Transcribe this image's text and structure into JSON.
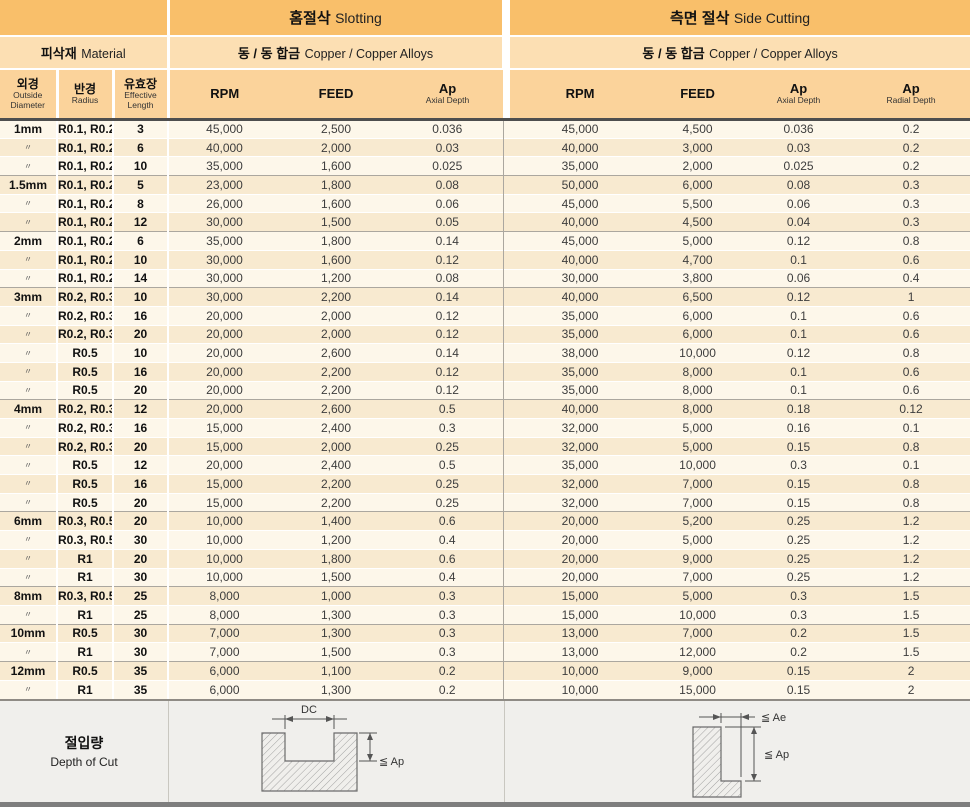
{
  "sections": {
    "slotting": {
      "ko": "홈절삭",
      "en": "Slotting"
    },
    "side_cutting": {
      "ko": "측면 절삭",
      "en": "Side Cutting"
    }
  },
  "material": {
    "label_ko": "피삭재",
    "label_en": "Material",
    "slotting_value_ko": "동 / 동 합금",
    "slotting_value_en": "Copper / Copper Alloys",
    "side_value_ko": "동 / 동 합금",
    "side_value_en": "Copper / Copper Alloys"
  },
  "columns": {
    "outside_diameter": {
      "ko": "외경",
      "en": "Outside Diameter"
    },
    "radius": {
      "ko": "반경",
      "en": "Radius"
    },
    "effective_length": {
      "ko": "유효장",
      "en": "Effective Length"
    },
    "slot_rpm": "RPM",
    "slot_feed": "FEED",
    "slot_ap": {
      "label": "Ap",
      "sub": "Axial Depth"
    },
    "side_rpm": "RPM",
    "side_feed": "FEED",
    "side_ap": {
      "label": "Ap",
      "sub": "Axial Depth"
    },
    "side_ae": {
      "label": "Ap",
      "sub": "Radial Depth"
    }
  },
  "rows": [
    [
      "1mm",
      "R0.1, R0.2",
      "3",
      "45,000",
      "2,500",
      "0.036",
      "45,000",
      "4,500",
      "0.036",
      "0.2"
    ],
    [
      "〃",
      "R0.1, R0.2",
      "6",
      "40,000",
      "2,000",
      "0.03",
      "40,000",
      "3,000",
      "0.03",
      "0.2"
    ],
    [
      "〃",
      "R0.1, R0.2",
      "10",
      "35,000",
      "1,600",
      "0.025",
      "35,000",
      "2,000",
      "0.025",
      "0.2"
    ],
    [
      "1.5mm",
      "R0.1, R0.2",
      "5",
      "23,000",
      "1,800",
      "0.08",
      "50,000",
      "6,000",
      "0.08",
      "0.3"
    ],
    [
      "〃",
      "R0.1, R0.2",
      "8",
      "26,000",
      "1,600",
      "0.06",
      "45,000",
      "5,500",
      "0.06",
      "0.3"
    ],
    [
      "〃",
      "R0.1, R0.2",
      "12",
      "30,000",
      "1,500",
      "0.05",
      "40,000",
      "4,500",
      "0.04",
      "0.3"
    ],
    [
      "2mm",
      "R0.1, R0.2",
      "6",
      "35,000",
      "1,800",
      "0.14",
      "45,000",
      "5,000",
      "0.12",
      "0.8"
    ],
    [
      "〃",
      "R0.1, R0.2",
      "10",
      "30,000",
      "1,600",
      "0.12",
      "40,000",
      "4,700",
      "0.1",
      "0.6"
    ],
    [
      "〃",
      "R0.1, R0.2",
      "14",
      "30,000",
      "1,200",
      "0.08",
      "30,000",
      "3,800",
      "0.06",
      "0.4"
    ],
    [
      "3mm",
      "R0.2, R0.3",
      "10",
      "30,000",
      "2,200",
      "0.14",
      "40,000",
      "6,500",
      "0.12",
      "1"
    ],
    [
      "〃",
      "R0.2, R0.3",
      "16",
      "20,000",
      "2,000",
      "0.12",
      "35,000",
      "6,000",
      "0.1",
      "0.6"
    ],
    [
      "〃",
      "R0.2, R0.3",
      "20",
      "20,000",
      "2,000",
      "0.12",
      "35,000",
      "6,000",
      "0.1",
      "0.6"
    ],
    [
      "〃",
      "R0.5",
      "10",
      "20,000",
      "2,600",
      "0.14",
      "38,000",
      "10,000",
      "0.12",
      "0.8"
    ],
    [
      "〃",
      "R0.5",
      "16",
      "20,000",
      "2,200",
      "0.12",
      "35,000",
      "8,000",
      "0.1",
      "0.6"
    ],
    [
      "〃",
      "R0.5",
      "20",
      "20,000",
      "2,200",
      "0.12",
      "35,000",
      "8,000",
      "0.1",
      "0.6"
    ],
    [
      "4mm",
      "R0.2, R0.3",
      "12",
      "20,000",
      "2,600",
      "0.5",
      "40,000",
      "8,000",
      "0.18",
      "0.12"
    ],
    [
      "〃",
      "R0.2, R0.3",
      "16",
      "15,000",
      "2,400",
      "0.3",
      "32,000",
      "5,000",
      "0.16",
      "0.1"
    ],
    [
      "〃",
      "R0.2, R0.3",
      "20",
      "15,000",
      "2,000",
      "0.25",
      "32,000",
      "5,000",
      "0.15",
      "0.8"
    ],
    [
      "〃",
      "R0.5",
      "12",
      "20,000",
      "2,400",
      "0.5",
      "35,000",
      "10,000",
      "0.3",
      "0.1"
    ],
    [
      "〃",
      "R0.5",
      "16",
      "15,000",
      "2,200",
      "0.25",
      "32,000",
      "7,000",
      "0.15",
      "0.8"
    ],
    [
      "〃",
      "R0.5",
      "20",
      "15,000",
      "2,200",
      "0.25",
      "32,000",
      "7,000",
      "0.15",
      "0.8"
    ],
    [
      "6mm",
      "R0.3, R0.5",
      "20",
      "10,000",
      "1,400",
      "0.6",
      "20,000",
      "5,200",
      "0.25",
      "1.2"
    ],
    [
      "〃",
      "R0.3, R0.5",
      "30",
      "10,000",
      "1,200",
      "0.4",
      "20,000",
      "5,000",
      "0.25",
      "1.2"
    ],
    [
      "〃",
      "R1",
      "20",
      "10,000",
      "1,800",
      "0.6",
      "20,000",
      "9,000",
      "0.25",
      "1.2"
    ],
    [
      "〃",
      "R1",
      "30",
      "10,000",
      "1,500",
      "0.4",
      "20,000",
      "7,000",
      "0.25",
      "1.2"
    ],
    [
      "8mm",
      "R0.3, R0.5",
      "25",
      "8,000",
      "1,000",
      "0.3",
      "15,000",
      "5,000",
      "0.3",
      "1.5"
    ],
    [
      "〃",
      "R1",
      "25",
      "8,000",
      "1,300",
      "0.3",
      "15,000",
      "10,000",
      "0.3",
      "1.5"
    ],
    [
      "10mm",
      "R0.5",
      "30",
      "7,000",
      "1,300",
      "0.3",
      "13,000",
      "7,000",
      "0.2",
      "1.5"
    ],
    [
      "〃",
      "R1",
      "30",
      "7,000",
      "1,500",
      "0.3",
      "13,000",
      "12,000",
      "0.2",
      "1.5"
    ],
    [
      "12mm",
      "R0.5",
      "35",
      "6,000",
      "1,100",
      "0.2",
      "10,000",
      "9,000",
      "0.15",
      "2"
    ],
    [
      "〃",
      "R1",
      "35",
      "6,000",
      "1,300",
      "0.2",
      "10,000",
      "15,000",
      "0.15",
      "2"
    ]
  ],
  "group_start_indexes": [
    3,
    6,
    9,
    15,
    21,
    25,
    27,
    29
  ],
  "footer": {
    "label_ko": "절입량",
    "label_en": "Depth of Cut",
    "slot_diagram": {
      "dim_width": "DC",
      "dim_depth": "≦ Ap"
    },
    "side_diagram": {
      "dim_width": "≦ Ae",
      "dim_depth": "≦ Ap"
    }
  },
  "colors": {
    "header_orange": "#F9BF6A",
    "header_light": "#FCDFB3",
    "header_mid": "#FBD39B",
    "row_light": "#FDF7EA",
    "row_alt": "#F8EAD0",
    "footer_bg": "#F0EFEC",
    "rule_dark": "#4E4E4E",
    "rule_gray": "#ABA79F"
  }
}
